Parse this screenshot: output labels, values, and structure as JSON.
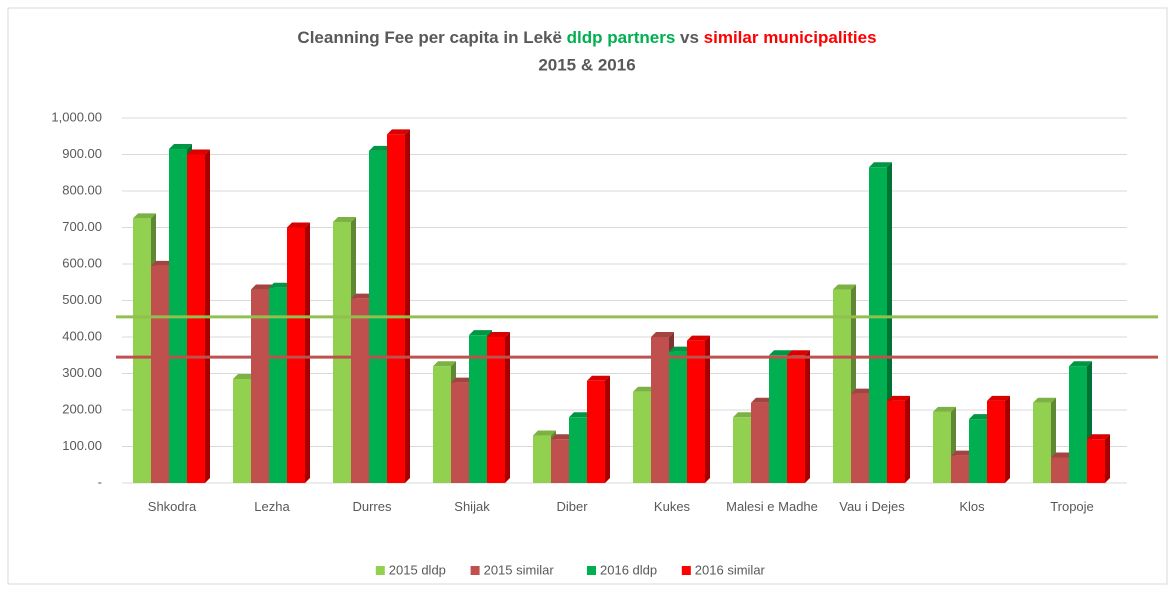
{
  "chart_data": {
    "type": "bar3d",
    "title_parts": [
      {
        "text": "Cleanning Fee per capita in Lekë ",
        "color": "#595959"
      },
      {
        "text": "dldp partners",
        "color": "#00b050"
      },
      {
        "text": " vs ",
        "color": "#595959"
      },
      {
        "text": "similar municipalities",
        "color": "#ff0000"
      }
    ],
    "subtitle": "2015 & 2016",
    "categories": [
      "Shkodra",
      "Lezha",
      "Durres",
      "Shijak",
      "Diber",
      "Kukes",
      "Malesi e Madhe",
      "Vau i Dejes",
      "Klos",
      "Tropoje"
    ],
    "series": [
      {
        "name": "2015 dldp",
        "color": "#92d050",
        "values": [
          725,
          285,
          715,
          320,
          130,
          250,
          180,
          530,
          195,
          220
        ]
      },
      {
        "name": "2015 similar",
        "color": "#c0504d",
        "values": [
          595,
          530,
          505,
          275,
          120,
          400,
          220,
          245,
          75,
          70
        ]
      },
      {
        "name": "2016 dldp",
        "color": "#00b050",
        "values": [
          915,
          535,
          910,
          405,
          180,
          360,
          350,
          865,
          175,
          320
        ]
      },
      {
        "name": "2016 similar",
        "color": "#ff0000",
        "values": [
          900,
          700,
          955,
          400,
          280,
          390,
          350,
          225,
          225,
          120
        ]
      }
    ],
    "ylim": [
      0,
      1000
    ],
    "yticks": [
      {
        "value": 0,
        "label": "-"
      },
      {
        "value": 100,
        "label": "100.00"
      },
      {
        "value": 200,
        "label": "200.00"
      },
      {
        "value": 300,
        "label": "300.00"
      },
      {
        "value": 400,
        "label": "400.00"
      },
      {
        "value": 500,
        "label": "500.00"
      },
      {
        "value": 600,
        "label": "600.00"
      },
      {
        "value": 700,
        "label": "700.00"
      },
      {
        "value": 800,
        "label": "800.00"
      },
      {
        "value": 900,
        "label": "900.00"
      },
      {
        "value": 1000,
        "label": "1,000.00"
      }
    ],
    "grid": true,
    "legend": "bottom",
    "reference_lines": [
      {
        "value": 455,
        "color": "#92c050"
      },
      {
        "value": 345,
        "color": "#c0504d"
      }
    ]
  }
}
